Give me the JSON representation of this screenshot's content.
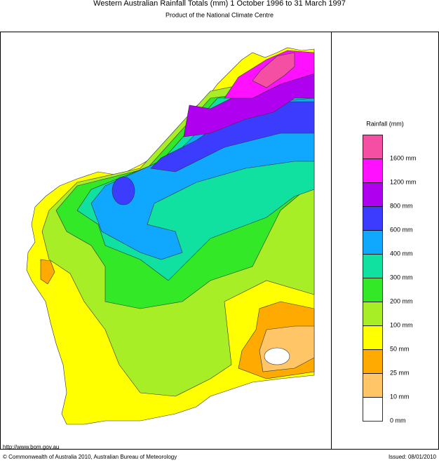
{
  "header": {
    "title": "Western Australian Rainfall Totals (mm) 1 October 1996 to 31 March 1997",
    "subtitle": "Product of the National Climate Centre"
  },
  "legend": {
    "title": "Rainfall (mm)",
    "colors": [
      "#f54fa3",
      "#ff10ff",
      "#b000f0",
      "#3c3cff",
      "#10a8ff",
      "#10e0a0",
      "#33e826",
      "#a8ee26",
      "#ffff00",
      "#ffaa00",
      "#ffc566",
      "#ffffff"
    ],
    "labels": [
      "1600 mm",
      "1200 mm",
      "800 mm",
      "600 mm",
      "400 mm",
      "300 mm",
      "200 mm",
      "100 mm",
      "50 mm",
      "25 mm",
      "10 mm",
      "0 mm"
    ]
  },
  "footer": {
    "url": "http://www.bom.gov.au",
    "copyright": "© Commonwealth of Australia 2010, Australian Bureau of Meteorology",
    "issued": "Issued: 08/01/2010"
  }
}
